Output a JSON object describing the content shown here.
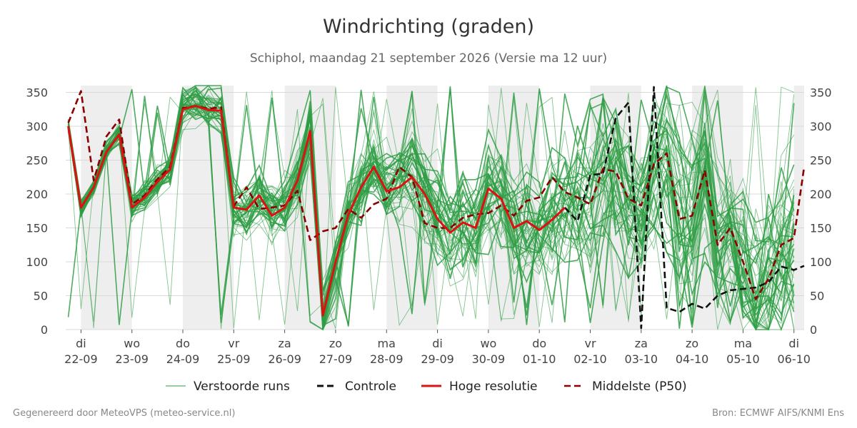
{
  "header": {
    "title": "Windrichting (graden)",
    "subtitle": "Schiphol, maandag 21 september 2026 (Versie ma 12 uur)"
  },
  "footer": {
    "left": "Gegenereerd door MeteoVPS (meteo-service.nl)",
    "right": "Bron: ECMWF AIFS/KNMI Ens"
  },
  "chart_data": {
    "type": "line",
    "title": "Windrichting (graden)",
    "subtitle": "Schiphol, maandag 21 september 2026 (Versie ma 12 uur)",
    "ylim": [
      0,
      360
    ],
    "yticks": [
      0,
      50,
      100,
      150,
      200,
      250,
      300,
      350
    ],
    "x_unit": "days since 2026-09-21 00:00",
    "xlim": [
      1.7,
      16.2
    ],
    "x_ticks": [
      {
        "x": 2,
        "day": "di",
        "date": "22-09"
      },
      {
        "x": 3,
        "day": "wo",
        "date": "23-09"
      },
      {
        "x": 4,
        "day": "do",
        "date": "24-09"
      },
      {
        "x": 5,
        "day": "vr",
        "date": "25-09"
      },
      {
        "x": 6,
        "day": "za",
        "date": "26-09"
      },
      {
        "x": 7,
        "day": "zo",
        "date": "27-09"
      },
      {
        "x": 8,
        "day": "ma",
        "date": "28-09"
      },
      {
        "x": 9,
        "day": "di",
        "date": "29-09"
      },
      {
        "x": 10,
        "day": "wo",
        "date": "30-09"
      },
      {
        "x": 11,
        "day": "do",
        "date": "01-10"
      },
      {
        "x": 12,
        "day": "vr",
        "date": "02-10"
      },
      {
        "x": 13,
        "day": "za",
        "date": "03-10"
      },
      {
        "x": 14,
        "day": "zo",
        "date": "04-10"
      },
      {
        "x": 15,
        "day": "ma",
        "date": "05-10"
      },
      {
        "x": 16,
        "day": "di",
        "date": "06-10"
      }
    ],
    "shaded_ranges": [
      [
        2,
        3
      ],
      [
        4,
        5
      ],
      [
        6,
        7
      ],
      [
        8,
        9
      ],
      [
        10,
        11
      ],
      [
        12,
        13
      ],
      [
        14,
        15
      ],
      [
        16,
        16.2
      ]
    ],
    "legend_position": "bottom",
    "legend": [
      "Verstoorde runs",
      "Controle",
      "Hoge resolutie",
      "Middelste (P50)"
    ],
    "ensemble_members": 50,
    "series": [
      {
        "name": "Hoge resolutie",
        "color": "#dd1111",
        "style": "solid",
        "x": [
          1.75,
          2.0,
          2.25,
          2.5,
          2.75,
          3.0,
          3.25,
          3.5,
          3.75,
          4.0,
          4.25,
          4.5,
          4.75,
          5.0,
          5.25,
          5.5,
          5.75,
          6.0,
          6.25,
          6.5,
          6.75,
          7.0,
          7.25,
          7.5,
          7.75,
          8.0,
          8.25,
          8.5,
          8.75,
          9.0,
          9.25,
          9.5,
          9.75,
          10.0,
          10.25,
          10.5,
          10.75,
          11.0,
          11.25,
          11.5
        ],
        "values": [
          300,
          180,
          210,
          262,
          288,
          180,
          195,
          218,
          236,
          325,
          330,
          324,
          323,
          180,
          177,
          198,
          168,
          180,
          220,
          293,
          21,
          100,
          170,
          210,
          240,
          204,
          210,
          225,
          200,
          163,
          143,
          158,
          150,
          208,
          193,
          150,
          160,
          147,
          162,
          180
        ]
      },
      {
        "name": "Controle",
        "color": "#111111",
        "style": "dashed",
        "x": [
          11.5,
          11.75,
          12.0,
          12.25,
          12.5,
          12.75,
          13.0,
          13.25,
          13.5,
          13.75,
          14.0,
          14.25,
          14.5,
          14.75,
          15.0,
          15.25,
          15.5,
          15.75,
          16.0,
          16.25
        ],
        "values": [
          180,
          160,
          228,
          230,
          312,
          335,
          2,
          358,
          32,
          26,
          38,
          31,
          50,
          58,
          60,
          62,
          70,
          93,
          88,
          94
        ]
      },
      {
        "name": "Middelste (P50)",
        "color": "#8b0000",
        "style": "dashed",
        "x": [
          1.75,
          2.0,
          2.25,
          2.5,
          2.75,
          3.0,
          3.25,
          3.5,
          3.75,
          4.0,
          4.25,
          4.5,
          4.75,
          5.0,
          5.25,
          5.5,
          5.75,
          6.0,
          6.25,
          6.5,
          6.75,
          7.0,
          7.25,
          7.5,
          7.75,
          8.0,
          8.25,
          8.5,
          8.75,
          9.0,
          9.25,
          9.5,
          9.75,
          10.0,
          10.25,
          10.5,
          10.75,
          11.0,
          11.25,
          11.5,
          11.75,
          12.0,
          12.25,
          12.5,
          12.75,
          13.0,
          13.25,
          13.5,
          13.75,
          14.0,
          14.25,
          14.5,
          14.75,
          15.0,
          15.25,
          15.5,
          15.75,
          16.0,
          16.25
        ],
        "values": [
          305,
          352,
          220,
          285,
          310,
          185,
          198,
          222,
          240,
          327,
          330,
          326,
          328,
          182,
          210,
          178,
          180,
          183,
          205,
          132,
          145,
          150,
          178,
          165,
          185,
          193,
          240,
          225,
          157,
          150,
          150,
          165,
          170,
          172,
          183,
          168,
          190,
          195,
          225,
          203,
          195,
          185,
          237,
          233,
          193,
          183,
          244,
          260,
          163,
          168,
          235,
          125,
          150,
          100,
          45,
          75,
          125,
          135,
          240
        ]
      }
    ]
  }
}
